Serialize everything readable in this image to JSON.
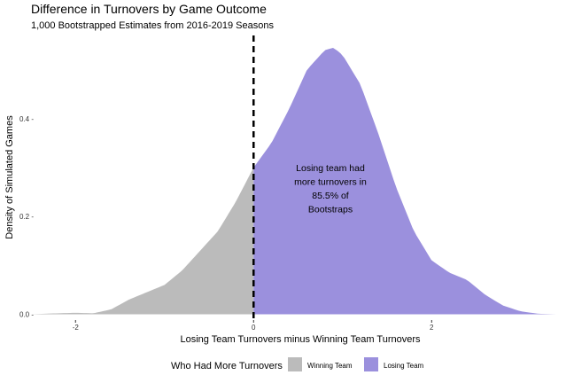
{
  "chart_data": {
    "type": "area",
    "title": "Difference in Turnovers by Game Outcome",
    "subtitle": "1,000 Bootstrapped Estimates from 2016-2019 Seasons",
    "xlabel": "Losing Team Turnovers minus Winning Team Turnovers",
    "ylabel": "Density of Simulated Games",
    "xlim": [
      -2.5,
      3.4
    ],
    "ylim": [
      -0.01,
      0.57
    ],
    "x_ticks": [
      {
        "value": -2,
        "label": "-2"
      },
      {
        "value": 0,
        "label": "0"
      },
      {
        "value": 2,
        "label": "2"
      }
    ],
    "y_ticks": [
      {
        "value": 0.0,
        "label": "0.0 -"
      },
      {
        "value": 0.2,
        "label": "0.2 -"
      },
      {
        "value": 0.4,
        "label": "0.4 -"
      }
    ],
    "grid": false,
    "reference_line": {
      "x": 0,
      "style": "dashed",
      "color": "#000000"
    },
    "series": [
      {
        "name": "Winning Team",
        "color": "#bbbbbb",
        "x_range": [
          -2.5,
          0
        ]
      },
      {
        "name": "Losing Team",
        "color": "#9b90dd",
        "x_range": [
          0,
          3.4
        ]
      }
    ],
    "density": {
      "x": [
        -2.5,
        -2.2,
        -2.0,
        -1.8,
        -1.6,
        -1.4,
        -1.2,
        -1.0,
        -0.8,
        -0.6,
        -0.4,
        -0.2,
        0.0,
        0.2,
        0.4,
        0.6,
        0.8,
        0.9,
        1.0,
        1.2,
        1.4,
        1.6,
        1.8,
        2.0,
        2.2,
        2.4,
        2.6,
        2.8,
        3.0,
        3.2,
        3.4
      ],
      "y": [
        0.0,
        0.002,
        0.003,
        0.002,
        0.01,
        0.03,
        0.045,
        0.06,
        0.09,
        0.13,
        0.17,
        0.23,
        0.3,
        0.35,
        0.42,
        0.5,
        0.54,
        0.545,
        0.53,
        0.47,
        0.37,
        0.26,
        0.17,
        0.11,
        0.085,
        0.07,
        0.04,
        0.018,
        0.006,
        0.001,
        0.0
      ]
    },
    "annotation": [
      "Losing team had",
      "more turnovers in",
      "85.5% of",
      "Bootstraps"
    ],
    "legend": {
      "title": "Who Had More Turnovers",
      "position": "bottom",
      "items": [
        {
          "label": "Winning Team",
          "color": "#bbbbbb"
        },
        {
          "label": "Losing Team",
          "color": "#9b90dd"
        }
      ]
    }
  }
}
